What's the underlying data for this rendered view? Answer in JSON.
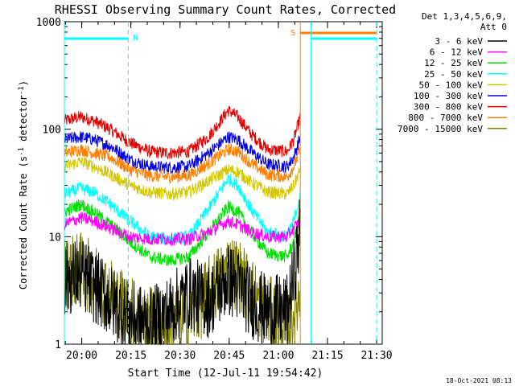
{
  "chart_data": {
    "type": "line",
    "title": "RHESSI Observing Summary Count Rates, Corrected",
    "ylabel_base": "Corrected Count Rate (s",
    "ylabel_sup1": "-1",
    "ylabel_mid": " detector",
    "ylabel_sup2": "-1",
    "ylabel_end": ")",
    "xlabel": "Start Time (12-Jul-11 19:54:42)",
    "timestamp": "18-Oct-2021 08:13",
    "x_ticks": [
      "20:00",
      "20:15",
      "20:30",
      "20:45",
      "21:00",
      "21:15",
      "21:30"
    ],
    "x_tick_minutes": [
      5.3,
      20.3,
      35.3,
      50.3,
      65.3,
      80.3,
      95.3
    ],
    "xlim_minutes": [
      0,
      97
    ],
    "y_scale": "log",
    "ylim": [
      1,
      1000
    ],
    "y_ticks": [
      "1",
      "10",
      "100",
      "1000"
    ],
    "y_tick_values": [
      1,
      10,
      100,
      1000
    ],
    "legend_header": [
      "Det 1,3,4,5,6,9,",
      "Att 0"
    ],
    "legend_position": "right",
    "series": [
      {
        "name": "3 - 6 keV",
        "color": "#000000"
      },
      {
        "name": "6 - 12 keV",
        "color": "#ff00ff"
      },
      {
        "name": "12 - 25 keV",
        "color": "#00e000"
      },
      {
        "name": "25 - 50 keV",
        "color": "#00ffff"
      },
      {
        "name": "50 - 100 keV",
        "color": "#d4c800"
      },
      {
        "name": "100 - 300 keV",
        "color": "#0000e0"
      },
      {
        "name": "300 - 800 keV",
        "color": "#e00000"
      },
      {
        "name": "800 - 7000 keV",
        "color": "#ff8000"
      },
      {
        "name": "7000 - 15000 keV",
        "color": "#808000"
      }
    ],
    "curves": [
      {
        "series": 6,
        "points": [
          [
            0,
            120
          ],
          [
            5,
            130
          ],
          [
            9,
            120
          ],
          [
            14,
            100
          ],
          [
            20,
            75
          ],
          [
            26,
            62
          ],
          [
            32,
            60
          ],
          [
            38,
            62
          ],
          [
            44,
            85
          ],
          [
            50,
            150
          ],
          [
            53,
            130
          ],
          [
            57,
            90
          ],
          [
            62,
            65
          ],
          [
            68,
            62
          ],
          [
            70,
            80
          ],
          [
            72,
            130
          ]
        ]
      },
      {
        "series": 5,
        "points": [
          [
            0,
            80
          ],
          [
            5,
            85
          ],
          [
            9,
            80
          ],
          [
            14,
            70
          ],
          [
            20,
            52
          ],
          [
            26,
            45
          ],
          [
            32,
            44
          ],
          [
            38,
            45
          ],
          [
            44,
            60
          ],
          [
            50,
            85
          ],
          [
            53,
            80
          ],
          [
            57,
            62
          ],
          [
            62,
            47
          ],
          [
            68,
            45
          ],
          [
            70,
            55
          ],
          [
            72,
            85
          ]
        ]
      },
      {
        "series": 7,
        "points": [
          [
            0,
            60
          ],
          [
            5,
            65
          ],
          [
            9,
            60
          ],
          [
            14,
            55
          ],
          [
            20,
            42
          ],
          [
            26,
            37
          ],
          [
            32,
            36
          ],
          [
            38,
            37
          ],
          [
            44,
            48
          ],
          [
            50,
            65
          ],
          [
            53,
            62
          ],
          [
            57,
            48
          ],
          [
            62,
            38
          ],
          [
            68,
            36
          ],
          [
            70,
            45
          ],
          [
            72,
            65
          ]
        ]
      },
      {
        "series": 4,
        "points": [
          [
            0,
            45
          ],
          [
            5,
            50
          ],
          [
            9,
            45
          ],
          [
            14,
            38
          ],
          [
            20,
            30
          ],
          [
            26,
            26
          ],
          [
            32,
            25
          ],
          [
            38,
            26
          ],
          [
            44,
            33
          ],
          [
            50,
            42
          ],
          [
            53,
            40
          ],
          [
            57,
            32
          ],
          [
            62,
            26
          ],
          [
            68,
            25
          ],
          [
            70,
            30
          ],
          [
            72,
            42
          ]
        ]
      },
      {
        "series": 3,
        "points": [
          [
            0,
            25
          ],
          [
            5,
            28
          ],
          [
            9,
            26
          ],
          [
            14,
            20
          ],
          [
            20,
            14
          ],
          [
            26,
            10
          ],
          [
            32,
            9.5
          ],
          [
            38,
            10
          ],
          [
            44,
            18
          ],
          [
            50,
            35
          ],
          [
            53,
            30
          ],
          [
            57,
            18
          ],
          [
            62,
            11
          ],
          [
            68,
            10
          ],
          [
            70,
            14
          ],
          [
            72,
            25
          ]
        ]
      },
      {
        "series": 2,
        "points": [
          [
            0,
            17
          ],
          [
            5,
            20
          ],
          [
            9,
            17
          ],
          [
            14,
            13
          ],
          [
            20,
            9
          ],
          [
            26,
            6.5
          ],
          [
            32,
            6
          ],
          [
            38,
            6.5
          ],
          [
            44,
            11
          ],
          [
            50,
            19
          ],
          [
            53,
            17
          ],
          [
            57,
            11
          ],
          [
            62,
            7
          ],
          [
            68,
            6.5
          ],
          [
            70,
            9
          ],
          [
            72,
            16
          ]
        ]
      },
      {
        "series": 1,
        "points": [
          [
            0,
            13
          ],
          [
            5,
            15
          ],
          [
            9,
            14
          ],
          [
            14,
            12
          ],
          [
            20,
            10
          ],
          [
            26,
            9.5
          ],
          [
            32,
            9.5
          ],
          [
            38,
            9.5
          ],
          [
            44,
            11
          ],
          [
            50,
            14
          ],
          [
            53,
            13
          ],
          [
            57,
            11
          ],
          [
            62,
            10
          ],
          [
            68,
            10
          ],
          [
            70,
            12
          ],
          [
            72,
            14
          ]
        ]
      },
      {
        "series": 8,
        "points": [
          [
            0,
            4.5
          ],
          [
            5,
            5
          ],
          [
            9,
            4
          ],
          [
            14,
            3
          ],
          [
            20,
            2
          ],
          [
            26,
            1.5
          ],
          [
            32,
            1.6
          ],
          [
            38,
            1.8
          ],
          [
            44,
            3
          ],
          [
            50,
            5
          ],
          [
            53,
            4.5
          ],
          [
            57,
            3
          ],
          [
            62,
            2
          ],
          [
            68,
            1.5
          ],
          [
            70,
            2
          ],
          [
            72,
            3
          ]
        ]
      },
      {
        "series": 0,
        "points": [
          [
            0,
            4
          ],
          [
            5,
            4.5
          ],
          [
            9,
            3.5
          ],
          [
            14,
            2.5
          ],
          [
            20,
            1.8
          ],
          [
            26,
            1.5
          ],
          [
            32,
            2
          ],
          [
            38,
            3
          ],
          [
            44,
            2.5
          ],
          [
            50,
            4
          ],
          [
            53,
            3.5
          ],
          [
            57,
            2.5
          ],
          [
            62,
            2
          ],
          [
            68,
            2
          ],
          [
            70,
            4
          ],
          [
            72,
            12
          ]
        ]
      }
    ],
    "annotations": {
      "night_label": "N",
      "saa_label": "S"
    }
  }
}
